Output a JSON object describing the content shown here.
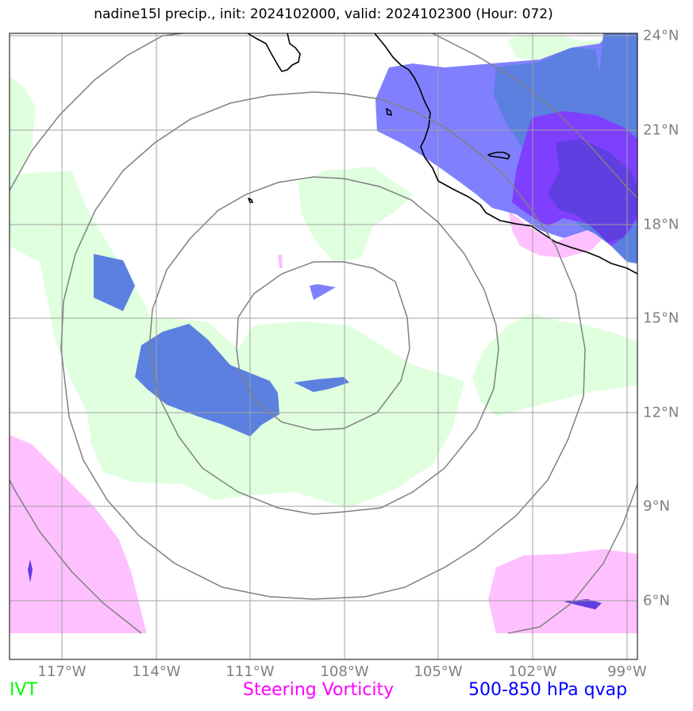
{
  "title": "nadine15l precip., init: 2024102000, valid: 2024102300 (Hour: 072)",
  "lon_labels": [
    "117°W",
    "114°W",
    "111°W",
    "108°W",
    "105°W",
    "102°W",
    "99°W"
  ],
  "lat_labels": [
    "24°N",
    "21°N",
    "18°N",
    "15°N",
    "12°N",
    "9°N",
    "6°N"
  ],
  "legend": {
    "ivt": {
      "label": "IVT",
      "color": "#00ff00"
    },
    "steering": {
      "label": "Steering Vorticity",
      "color": "#ff00ff"
    },
    "qvap": {
      "label": "500-850 hPa qvap",
      "color": "#0000ff"
    }
  },
  "colors": {
    "ivt_fill": "#dfffdf",
    "vort_fill": "#ffc0ff",
    "qvap_fill": "#8080ff",
    "qvap_dark_fill": "#5b80e0",
    "qvap_violet_fill": "#7f3fff",
    "qvap_indigo_fill": "#5f3fe0",
    "gridline": "#a0a0a0",
    "range_ring": "#808080",
    "coastline": "#000000"
  }
}
